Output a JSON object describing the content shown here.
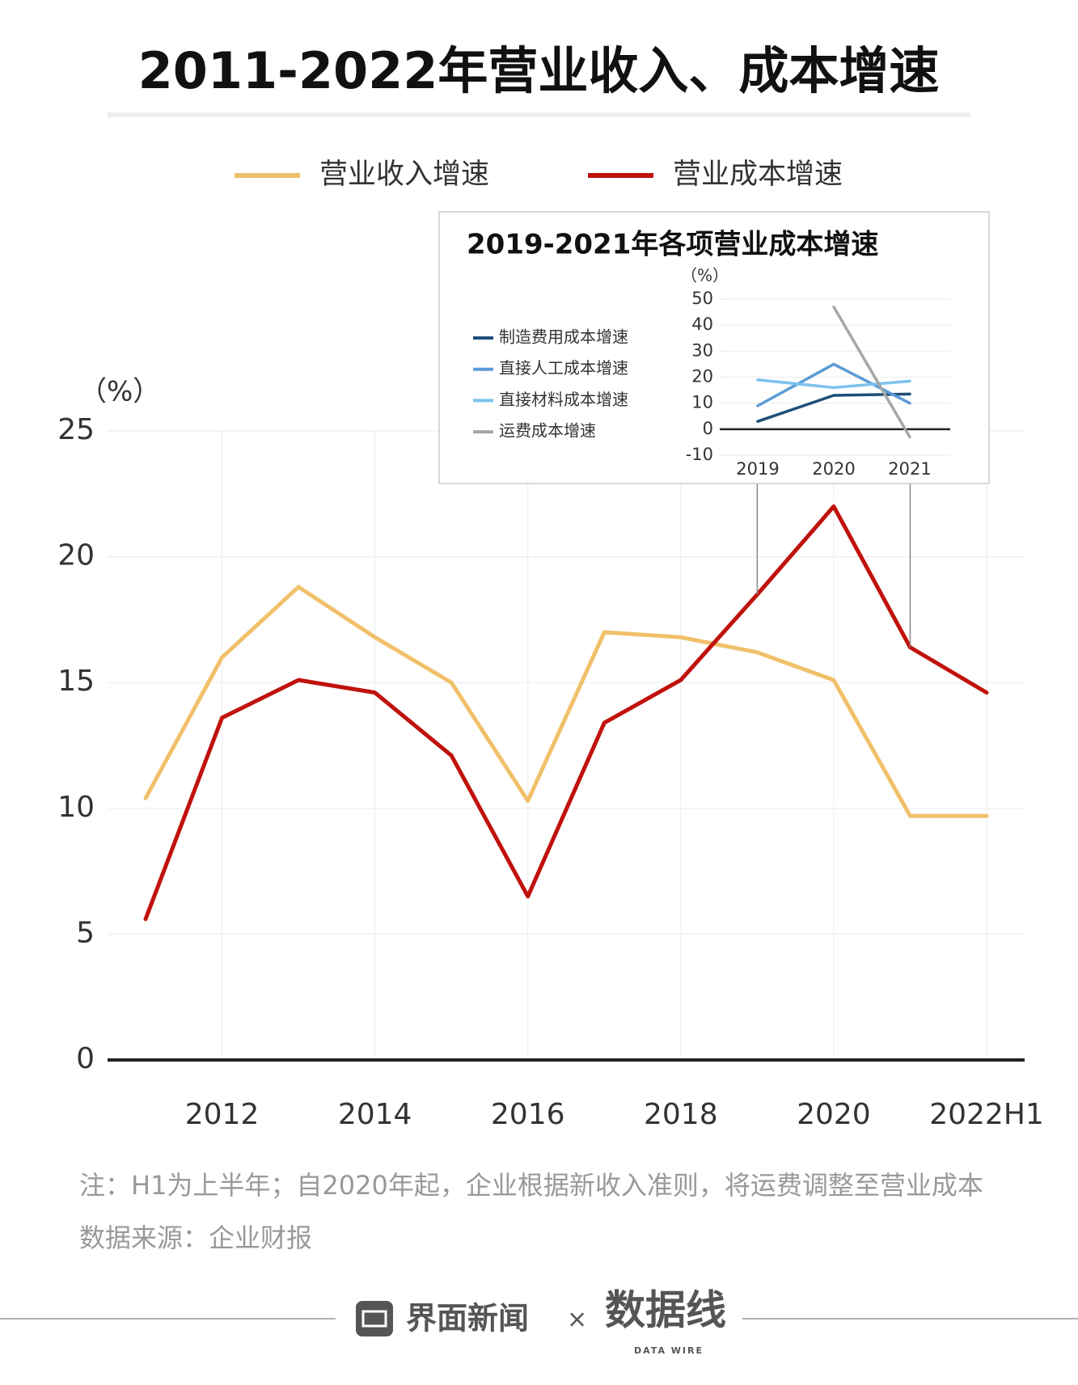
{
  "chart_data": [
    {
      "type": "line",
      "title": "2011-2022年营业收入、成本增速",
      "y_label": "（%）",
      "categories": [
        null,
        "2012",
        null,
        "2014",
        null,
        "2016",
        null,
        "2018",
        null,
        "2020",
        null,
        "2022H1"
      ],
      "series": [
        {
          "name": "营业收入增速",
          "color": "#f0c06a",
          "values": [
            10.4,
            16.0,
            18.8,
            16.8,
            15.0,
            10.3,
            17.0,
            16.8,
            16.2,
            15.1,
            9.7,
            9.7
          ]
        },
        {
          "name": "营业成本增速",
          "color": "#c0120c",
          "values": [
            5.6,
            13.6,
            15.1,
            14.6,
            12.1,
            6.5,
            13.4,
            15.1,
            18.5,
            22.0,
            16.4,
            14.6
          ]
        }
      ],
      "ylim": [
        0,
        25
      ],
      "yticks": [
        0,
        5,
        10,
        15,
        20,
        25
      ],
      "grid": true,
      "note": "注：H1为上半年；自2020年起，企业根据新收入准则，将运费调整至营业成本",
      "source": "数据来源：企业财报"
    },
    {
      "type": "line",
      "title": "2019-2021年各项营业成本增速",
      "y_label": "（%）",
      "categories": [
        "2019",
        "2020",
        "2021"
      ],
      "series": [
        {
          "name": "制造费用成本增速",
          "color": "#1f4e79",
          "values": [
            3,
            13,
            13.5
          ]
        },
        {
          "name": "直接人工成本增速",
          "color": "#5b9bd5",
          "values": [
            9,
            25,
            10
          ]
        },
        {
          "name": "直接材料成本增速",
          "color": "#7cc3ee",
          "values": [
            19,
            16,
            18.5
          ]
        },
        {
          "name": "运费成本增速",
          "color": "#a6a6a6",
          "values": [
            null,
            47,
            -3
          ]
        }
      ],
      "ylim": [
        -10,
        50
      ],
      "yticks": [
        -10,
        0,
        10,
        20,
        30,
        40,
        50
      ],
      "grid": true
    }
  ],
  "footer": {
    "brand": "界面新闻",
    "separator": "×",
    "partner": "数据线",
    "partner_sub": "DATA WIRE"
  }
}
